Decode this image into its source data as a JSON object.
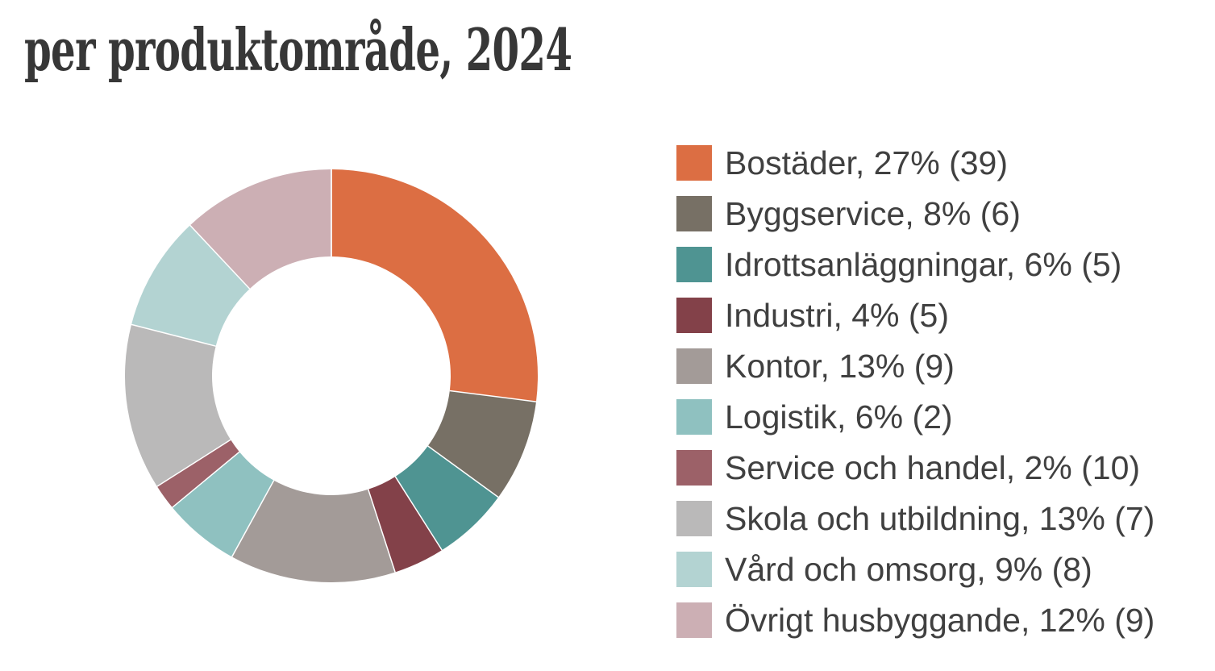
{
  "page": {
    "background_color": "#ffffff",
    "title_color": "#373737",
    "legend_text_color": "#404040"
  },
  "chart_data": {
    "type": "pie",
    "subtype": "donut",
    "title": "per produktområde, 2024",
    "legend_position": "right",
    "direction": "clockwise",
    "start_angle_deg": 0,
    "inner_radius_ratio": 0.578,
    "separator_color": "#ffffff",
    "slices": [
      {
        "key": "bostader",
        "label": "Bostäder",
        "pct": 27,
        "count": 39,
        "color": "#DC6E43",
        "display": "Bostäder, 27% (39)"
      },
      {
        "key": "byggservice",
        "label": "Byggservice",
        "pct": 8,
        "count": 6,
        "color": "#777065",
        "display": "Byggservice, 8% (6)"
      },
      {
        "key": "idrottsanlaggningar",
        "label": "Idrottsanläggningar",
        "pct": 6,
        "count": 5,
        "color": "#4F9492",
        "display": "Idrottsanläggningar, 6% (5)"
      },
      {
        "key": "industri",
        "label": "Industri",
        "pct": 4,
        "count": 5,
        "color": "#834149",
        "display": "Industri, 4% (5)"
      },
      {
        "key": "kontor",
        "label": "Kontor",
        "pct": 13,
        "count": 9,
        "color": "#A39B98",
        "display": "Kontor, 13% (9)"
      },
      {
        "key": "logistik",
        "label": "Logistik",
        "pct": 6,
        "count": 2,
        "color": "#8FC1C0",
        "display": "Logistik, 6% (2)"
      },
      {
        "key": "service-och-handel",
        "label": "Service och handel",
        "pct": 2,
        "count": 10,
        "color": "#9C6168",
        "display": "Service och handel, 2% (10)"
      },
      {
        "key": "skola-och-utbildning",
        "label": "Skola och utbildning",
        "pct": 13,
        "count": 7,
        "color": "#BAB9B9",
        "display": "Skola och utbildning, 13% (7)"
      },
      {
        "key": "vard-och-omsorg",
        "label": "Vård och omsorg",
        "pct": 9,
        "count": 8,
        "color": "#B3D3D2",
        "display": "Vård och omsorg, 9% (8)"
      },
      {
        "key": "ovrigt-husbyggande",
        "label": "Övrigt husbyggande",
        "pct": 12,
        "count": 9,
        "color": "#CCAFB4",
        "display": "Övrigt husbyggande, 12% (9)"
      }
    ]
  }
}
